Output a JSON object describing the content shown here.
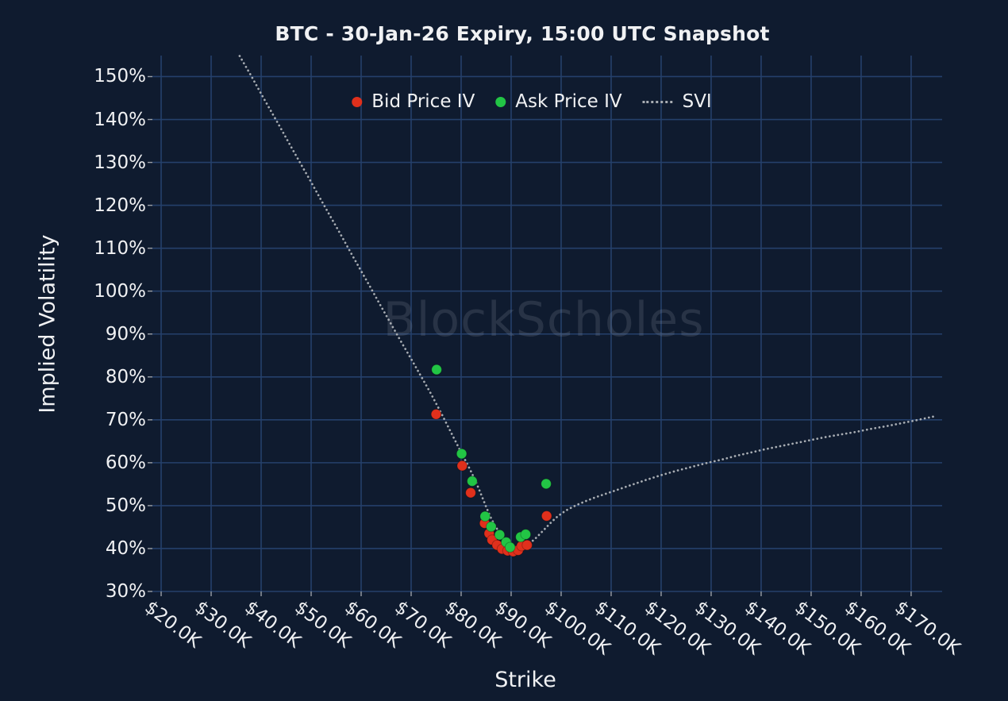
{
  "watermark": {
    "text": "BlockScholes"
  },
  "colors": {
    "background": "#0f1b2f",
    "grid": "#25406b",
    "text": "#f0f1f3",
    "tick_mark": "#9aa0a8",
    "bid": "#e0301c",
    "ask": "#22c545",
    "svi": "#a8adb3",
    "watermark": "rgba(165,172,184,0.17)"
  },
  "chart_data": {
    "type": "scatter",
    "title": "BTC - 30-Jan-26 Expiry, 15:00 UTC Snapshot",
    "xlabel": "Strike",
    "ylabel": "Implied Volatility",
    "x_unit": "strike_price_thousand_usd",
    "y_unit": "implied_volatility_percent",
    "xlim": [
      18.25,
      176.2
    ],
    "ylim": [
      30,
      154.9
    ],
    "grid": true,
    "legend_position": "top-center",
    "x_ticks": [
      20,
      30,
      40,
      50,
      60,
      70,
      80,
      90,
      100,
      110,
      120,
      130,
      140,
      150,
      160,
      170
    ],
    "x_tick_labels": [
      "$20.0K",
      "$30.0K",
      "$40.0K",
      "$50.0K",
      "$60.0K",
      "$70.0K",
      "$80.0K",
      "$90.0K",
      "$100.0K",
      "$110.0K",
      "$120.0K",
      "$130.0K",
      "$140.0K",
      "$150.0K",
      "$160.0K",
      "$170.0K"
    ],
    "y_ticks": [
      30,
      40,
      50,
      60,
      70,
      80,
      90,
      100,
      110,
      120,
      130,
      140,
      150
    ],
    "y_tick_labels": [
      "30%",
      "40%",
      "50%",
      "60%",
      "70%",
      "80%",
      "90%",
      "100%",
      "110%",
      "120%",
      "130%",
      "140%",
      "150%"
    ],
    "series": [
      {
        "name": "Bid Price IV",
        "type": "scatter",
        "color": "#e0301c",
        "points": [
          [
            75.0,
            71.3
          ],
          [
            80.2,
            59.3
          ],
          [
            81.9,
            53.0
          ],
          [
            84.7,
            45.9
          ],
          [
            85.6,
            43.5
          ],
          [
            86.2,
            42.0
          ],
          [
            87.2,
            40.8
          ],
          [
            88.2,
            39.9
          ],
          [
            89.3,
            39.5
          ],
          [
            90.4,
            39.3
          ],
          [
            91.4,
            39.6
          ],
          [
            92.1,
            40.6
          ],
          [
            93.2,
            40.8
          ],
          [
            97.1,
            47.6
          ]
        ]
      },
      {
        "name": "Ask Price IV",
        "type": "scatter",
        "color": "#22c545",
        "points": [
          [
            75.1,
            81.7
          ],
          [
            80.1,
            62.1
          ],
          [
            82.2,
            55.7
          ],
          [
            84.8,
            47.5
          ],
          [
            86.0,
            45.1
          ],
          [
            87.7,
            43.2
          ],
          [
            89.0,
            41.5
          ],
          [
            89.8,
            40.3
          ],
          [
            91.9,
            42.7
          ],
          [
            92.9,
            43.3
          ],
          [
            97.0,
            55.1
          ]
        ]
      },
      {
        "name": "SVI",
        "type": "line",
        "style": "dotted",
        "color": "#a8adb3",
        "points": [
          [
            35.7,
            154.8
          ],
          [
            38,
            150.2
          ],
          [
            40,
            146.0
          ],
          [
            42,
            141.9
          ],
          [
            44,
            137.8
          ],
          [
            46,
            133.6
          ],
          [
            48,
            129.5
          ],
          [
            50,
            125.4
          ],
          [
            52,
            121.2
          ],
          [
            54,
            117.1
          ],
          [
            56,
            113.0
          ],
          [
            58,
            108.8
          ],
          [
            60,
            104.7
          ],
          [
            62,
            100.6
          ],
          [
            64,
            96.4
          ],
          [
            66,
            92.3
          ],
          [
            68,
            88.2
          ],
          [
            70,
            84.2
          ],
          [
            72,
            80.1
          ],
          [
            74,
            76.0
          ],
          [
            76,
            71.6
          ],
          [
            78,
            67.0
          ],
          [
            80,
            62.4
          ],
          [
            81,
            60.2
          ],
          [
            82,
            57.9
          ],
          [
            83,
            55.4
          ],
          [
            84,
            52.6
          ],
          [
            85,
            49.7
          ],
          [
            86,
            47.0
          ],
          [
            87,
            44.9
          ],
          [
            88,
            43.1
          ],
          [
            89,
            41.7
          ],
          [
            90,
            40.7
          ],
          [
            91,
            40.2
          ],
          [
            92,
            40.2
          ],
          [
            93,
            40.7
          ],
          [
            94,
            41.5
          ],
          [
            95,
            42.5
          ],
          [
            96,
            43.7
          ],
          [
            97,
            44.9
          ],
          [
            98,
            46.1
          ],
          [
            99,
            47.2
          ],
          [
            100,
            48.1
          ],
          [
            101,
            48.9
          ],
          [
            102,
            49.5
          ],
          [
            103,
            50.1
          ],
          [
            104,
            50.6
          ],
          [
            105,
            51.1
          ],
          [
            107,
            52.0
          ],
          [
            109,
            52.8
          ],
          [
            111,
            53.6
          ],
          [
            113,
            54.4
          ],
          [
            115,
            55.2
          ],
          [
            117,
            56.0
          ],
          [
            120,
            57.1
          ],
          [
            123,
            58.1
          ],
          [
            126,
            59.0
          ],
          [
            129,
            59.9
          ],
          [
            132,
            60.7
          ],
          [
            135,
            61.6
          ],
          [
            138,
            62.4
          ],
          [
            141,
            63.2
          ],
          [
            144,
            63.9
          ],
          [
            147,
            64.6
          ],
          [
            150,
            65.3
          ],
          [
            153,
            66.0
          ],
          [
            156,
            66.6
          ],
          [
            159,
            67.2
          ],
          [
            162,
            67.9
          ],
          [
            165,
            68.5
          ],
          [
            168,
            69.2
          ],
          [
            171,
            69.9
          ],
          [
            173,
            70.4
          ],
          [
            175,
            70.9
          ]
        ]
      }
    ]
  }
}
